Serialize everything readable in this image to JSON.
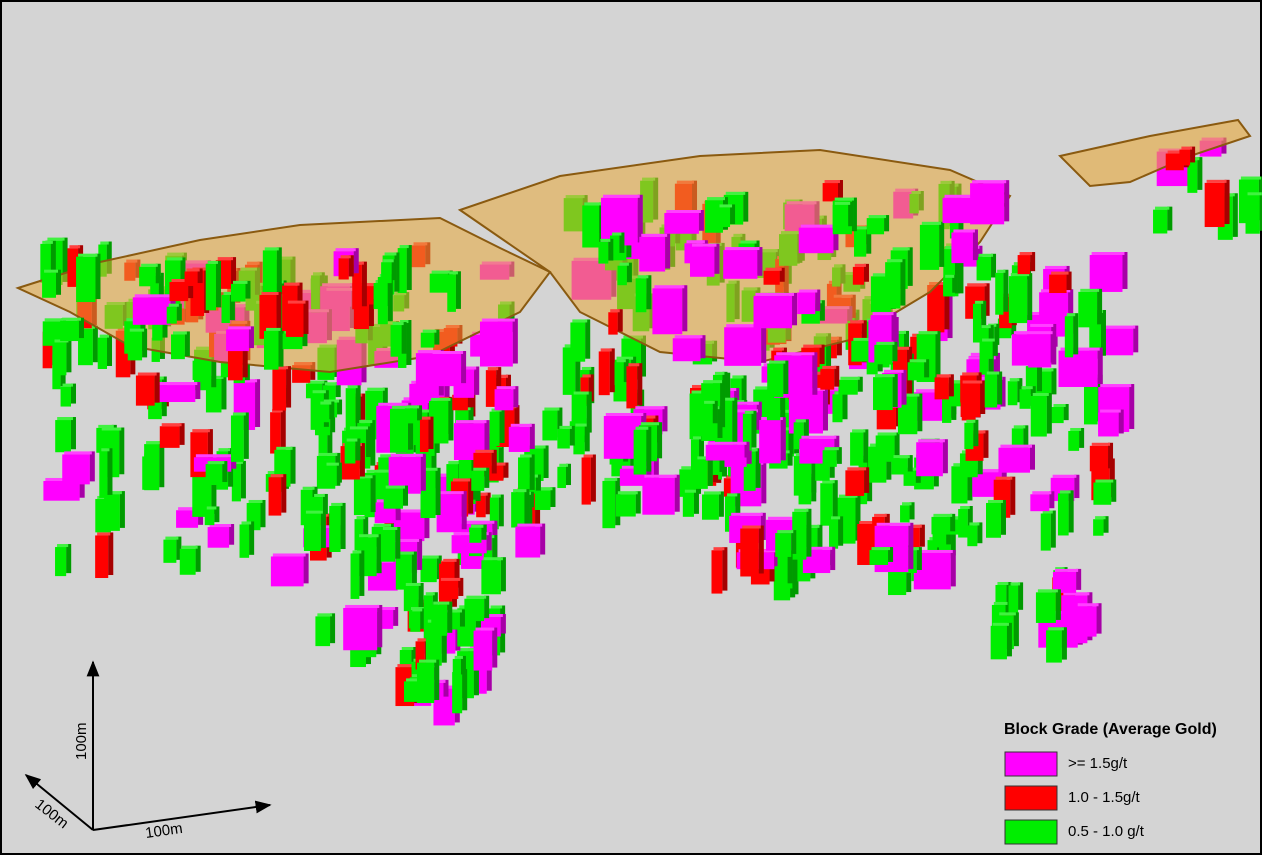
{
  "legend": {
    "title": "Block Grade (Average Gold)",
    "items": [
      {
        "label": ">= 1.5g/t",
        "color": "#ff00ff"
      },
      {
        "label": "1.0 - 1.5g/t",
        "color": "#ff0000"
      },
      {
        "label": "0.5 - 1.0 g/t",
        "color": "#00ee00"
      }
    ]
  },
  "scale_axes": {
    "vertical": "100m",
    "depth": "100m",
    "horizontal": "100m"
  }
}
